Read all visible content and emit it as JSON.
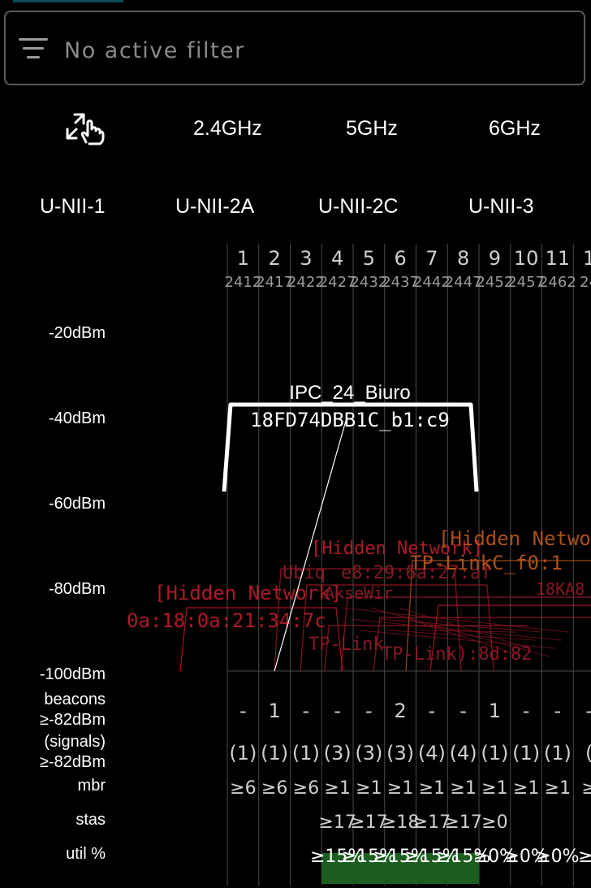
{
  "filter": {
    "text": "No active filter",
    "icon": "filter-icon"
  },
  "bands": {
    "icon": "touch-zoom-icon",
    "items": [
      "2.4GHz",
      "5GHz",
      "6GHz"
    ]
  },
  "unii": [
    "U-NII-1",
    "U-NII-2A",
    "U-NII-2C",
    "U-NII-3"
  ],
  "dbm_labels": [
    "-20dBm",
    "-40dBm",
    "-60dBm",
    "-80dBm",
    "-100dBm"
  ],
  "row_labels": {
    "beacons": "beacons\n≥-82dBm",
    "signals": "(signals)\n≥-82dBm",
    "mbr": "mbr",
    "stas": "stas",
    "util": "util %"
  },
  "channels": [
    "1",
    "2",
    "3",
    "4",
    "5",
    "6",
    "7",
    "8",
    "9",
    "10",
    "11",
    "1"
  ],
  "freqs": [
    "2412",
    "2417",
    "2422",
    "2427",
    "2432",
    "2437",
    "2442",
    "2447",
    "2452",
    "2457",
    "2462",
    "24"
  ],
  "beacons": [
    "-",
    "1",
    "-",
    "-",
    "-",
    "2",
    "-",
    "-",
    "1",
    "-",
    "-",
    "-"
  ],
  "signals": [
    "(1)",
    "(1)",
    "(1)",
    "(3)",
    "(3)",
    "(3)",
    "(4)",
    "(4)",
    "(1)",
    "(1)",
    "(1)",
    "("
  ],
  "mbr": [
    "≥6",
    "≥6",
    "≥6",
    "≥1",
    "≥1",
    "≥1",
    "≥1",
    "≥1",
    "≥1",
    "≥1",
    "≥1",
    "≥"
  ],
  "stas": [
    "",
    "",
    "",
    "≥17",
    "≥17",
    "≥18",
    "≥17",
    "≥17",
    "≥0",
    "",
    "",
    ""
  ],
  "util": [
    "",
    "",
    "",
    "≥15%",
    "≥15%",
    "≥15%",
    "≥15%",
    "≥15%",
    "≥0%",
    "≥0%",
    "≥0%",
    "≥("
  ],
  "colors": {
    "main": "#ffffff",
    "hidden": "#c8102e",
    "hidden2": "#a01828",
    "orange": "#b5551a",
    "util_bar": "#1b5e20",
    "grid": "#3a3a3a"
  },
  "networks": {
    "main": {
      "ssid": "IPC_24_Biuro",
      "id": "18FD74DBB1C_b1:c9"
    },
    "overlay": [
      {
        "text": "[Hidden Network]",
        "color": "#b81c2c"
      },
      {
        "text": "0a:18:0a:21:34:7c",
        "color": "#b81c2c"
      },
      {
        "text": "[Hidden Network]",
        "color": "#b81c2c"
      },
      {
        "text": "Ubiq",
        "color": "#8e1a26"
      },
      {
        "text": "e8:29:6a:27:af",
        "color": "#8e1a26"
      },
      {
        "text": "[Hidden Netwo",
        "color": "#b5551a"
      },
      {
        "text": "TP-LinkC_f0:1",
        "color": "#b5551a"
      },
      {
        "text": "AkseWir",
        "color": "#8e1a26"
      },
      {
        "text": "TP-Link",
        "color": "#8e1a26"
      },
      {
        "text": "TP-Link):8d:82",
        "color": "#8e1a26"
      },
      {
        "text": "18KA8",
        "color": "#8e1a26"
      }
    ]
  }
}
